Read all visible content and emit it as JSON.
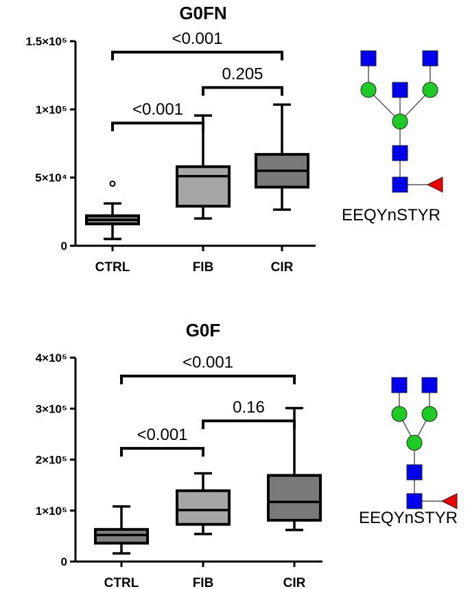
{
  "chart_data": [
    {
      "type": "box",
      "title": "G0FN",
      "categories": [
        "CTRL",
        "FIB",
        "CIR"
      ],
      "ylim": [
        0,
        150000
      ],
      "y_ticks": [
        {
          "value": 0,
          "label": "0"
        },
        {
          "value": 50000,
          "label": "5×10⁴"
        },
        {
          "value": 100000,
          "label": "1×10⁵"
        },
        {
          "value": 150000,
          "label": "1.5×10⁵"
        }
      ],
      "series": [
        {
          "category": "CTRL",
          "min": 5000,
          "q1": 16000,
          "median": 19000,
          "q3": 22000,
          "max": 31000,
          "outliers": [
            45500
          ],
          "color": "#808080"
        },
        {
          "category": "FIB",
          "min": 20000,
          "q1": 29000,
          "median": 51000,
          "q3": 58000,
          "max": 95500,
          "outliers": [],
          "color": "#a6a6a6"
        },
        {
          "category": "CIR",
          "min": 26500,
          "q1": 43000,
          "median": 55000,
          "q3": 67000,
          "max": 103500,
          "outliers": [],
          "color": "#7a7a7a"
        }
      ],
      "comparisons": [
        {
          "from": "CTRL",
          "to": "FIB",
          "p": "<0.001",
          "level": 90000
        },
        {
          "from": "FIB",
          "to": "CIR",
          "p": "0.205",
          "level": 116000
        },
        {
          "from": "CTRL",
          "to": "CIR",
          "p": "<0.001",
          "level": 142000
        }
      ],
      "peptide": "EEQYnSTYR",
      "glycan": "G0FN"
    },
    {
      "type": "box",
      "title": "G0F",
      "categories": [
        "CTRL",
        "FIB",
        "CIR"
      ],
      "ylim": [
        0,
        400000
      ],
      "y_ticks": [
        {
          "value": 0,
          "label": "0"
        },
        {
          "value": 100000,
          "label": "1×10⁵"
        },
        {
          "value": 200000,
          "label": "2×10⁵"
        },
        {
          "value": 300000,
          "label": "3×10⁵"
        },
        {
          "value": 400000,
          "label": "4×10⁵"
        }
      ],
      "series": [
        {
          "category": "CTRL",
          "min": 16000,
          "q1": 36000,
          "median": 52000,
          "q3": 63000,
          "max": 108000,
          "outliers": [],
          "color": "#808080"
        },
        {
          "category": "FIB",
          "min": 54000,
          "q1": 73000,
          "median": 101000,
          "q3": 139000,
          "max": 173000,
          "outliers": [],
          "color": "#a6a6a6"
        },
        {
          "category": "CIR",
          "min": 62000,
          "q1": 81000,
          "median": 117000,
          "q3": 169000,
          "max": 301000,
          "outliers": [],
          "color": "#7a7a7a"
        }
      ],
      "comparisons": [
        {
          "from": "CTRL",
          "to": "FIB",
          "p": "<0.001",
          "level": 222000
        },
        {
          "from": "FIB",
          "to": "CIR",
          "p": "0.16",
          "level": 276000
        },
        {
          "from": "CTRL",
          "to": "CIR",
          "p": "<0.001",
          "level": 364000
        }
      ],
      "peptide": "EEQYnSTYR",
      "glycan": "G0F"
    }
  ],
  "colors": {
    "glcnac": "#0000ee",
    "mannose": "#1ecb24",
    "fucose": "#ee0000",
    "axis": "#000000"
  },
  "icons": [
    "glcnac-square-icon",
    "mannose-circle-icon",
    "fucose-triangle-icon"
  ]
}
